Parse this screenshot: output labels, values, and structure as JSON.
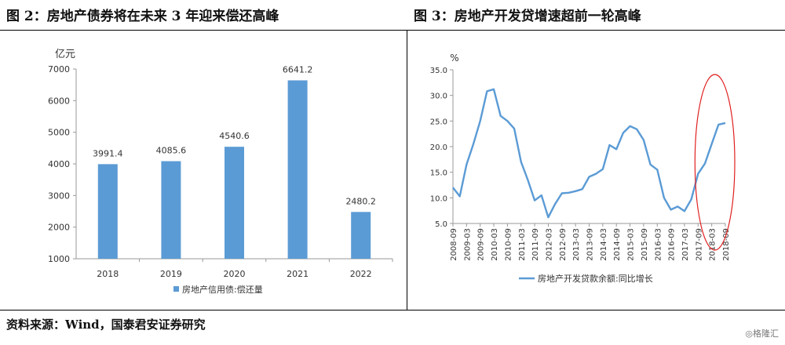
{
  "left_figure": {
    "title": "图 2：房地产债券将在未来 3 年迎来偿还高峰"
  },
  "right_figure": {
    "title": "图 3：房地产开发贷增速超前一轮高峰"
  },
  "source": "资料来源：Wind，国泰君安证券研究",
  "watermark": "◎格隆汇",
  "chart_data": [
    {
      "type": "bar",
      "categories": [
        "2018",
        "2019",
        "2020",
        "2021",
        "2022"
      ],
      "series": [
        {
          "name": "房地产信用债:偿还量",
          "values": [
            3991.4,
            4085.6,
            4540.6,
            6641.2,
            2480.2
          ]
        }
      ],
      "data_labels": [
        "3991.4",
        "4085.6",
        "4540.6",
        "6641.2",
        "2480.2"
      ],
      "ylabel": "亿元",
      "ylim": [
        1000,
        7000
      ],
      "yticks": [
        "1000",
        "2000",
        "3000",
        "4000",
        "5000",
        "6000",
        "7000"
      ],
      "grid": false,
      "legend": "bottom",
      "bar_color": "#5B9BD5"
    },
    {
      "type": "line",
      "ylabel": "%",
      "ylim": [
        5,
        35
      ],
      "yticks": [
        "5.0",
        "10.0",
        "15.0",
        "20.0",
        "25.0",
        "30.0",
        "35.0"
      ],
      "xticks": [
        "2008-09",
        "2009-03",
        "2009-09",
        "2010-03",
        "2010-09",
        "2011-03",
        "2011-09",
        "2012-03",
        "2012-09",
        "2013-03",
        "2013-09",
        "2014-03",
        "2014-09",
        "2015-03",
        "2015-09",
        "2016-03",
        "2016-09",
        "2017-03",
        "2017-09",
        "2018-03",
        "2018-09"
      ],
      "x": [
        "2008-09",
        "2008-12",
        "2009-03",
        "2009-06",
        "2009-09",
        "2009-12",
        "2010-03",
        "2010-06",
        "2010-09",
        "2010-12",
        "2011-03",
        "2011-06",
        "2011-09",
        "2011-12",
        "2012-03",
        "2012-06",
        "2012-09",
        "2012-12",
        "2013-03",
        "2013-06",
        "2013-09",
        "2013-12",
        "2014-03",
        "2014-06",
        "2014-09",
        "2014-12",
        "2015-03",
        "2015-06",
        "2015-09",
        "2015-12",
        "2016-03",
        "2016-06",
        "2016-09",
        "2016-12",
        "2017-03",
        "2017-06",
        "2017-09",
        "2017-12",
        "2018-03",
        "2018-06",
        "2018-09"
      ],
      "series": [
        {
          "name": "房地产开发贷款余额:同比增长",
          "values": [
            12.0,
            10.3,
            16.5,
            20.5,
            25.0,
            30.8,
            31.2,
            26.0,
            25.0,
            23.5,
            17.0,
            13.5,
            9.5,
            10.5,
            6.2,
            8.8,
            10.9,
            11.0,
            11.3,
            11.7,
            14.1,
            14.7,
            15.6,
            20.3,
            19.5,
            22.7,
            24.0,
            23.4,
            21.3,
            16.5,
            15.5,
            10.0,
            7.7,
            8.3,
            7.4,
            9.7,
            14.7,
            16.7,
            20.5,
            24.3,
            24.6
          ],
          "color": "#5B9BD5"
        }
      ],
      "grid": false,
      "legend": "bottom",
      "annotation": {
        "shape": "ellipse",
        "color": "#E02020",
        "x_range": [
          "2017-09",
          "2018-09"
        ]
      }
    }
  ]
}
